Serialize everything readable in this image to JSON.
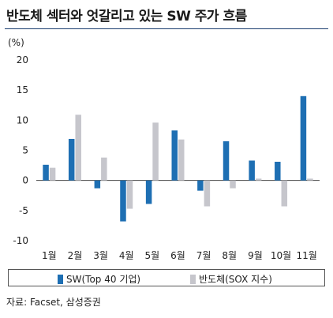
{
  "title": "반도체 섹터와 엇갈리고 있는 SW 주가 흐름",
  "source": "자료: Facset, 삼성증권",
  "chart_data": {
    "type": "bar",
    "title": "반도체 섹터와 엇갈리고 있는 SW 주가 흐름",
    "ylabel": "(%)",
    "xlabel": "",
    "ylim": [
      -10,
      20
    ],
    "yticks": [
      "20",
      "15",
      "10",
      "5",
      "0",
      "-5",
      "-10"
    ],
    "categories": [
      "1월",
      "2월",
      "3월",
      "4월",
      "5월",
      "6월",
      "7월",
      "8월",
      "9월",
      "10월",
      "11월"
    ],
    "series": [
      {
        "name": "SW(Top 40 기업)",
        "color": "#1e6fb3",
        "values": [
          2.6,
          6.9,
          -1.3,
          -6.8,
          -3.9,
          8.3,
          -1.7,
          6.5,
          3.3,
          3.1,
          14.0
        ]
      },
      {
        "name": "반도체(SOX 지수)",
        "color": "#c6c6cc",
        "values": [
          2.1,
          10.9,
          3.8,
          -4.7,
          9.6,
          6.8,
          -4.3,
          -1.3,
          0.3,
          -4.3,
          0.3
        ]
      }
    ],
    "grid": false,
    "legend": "bottom"
  }
}
